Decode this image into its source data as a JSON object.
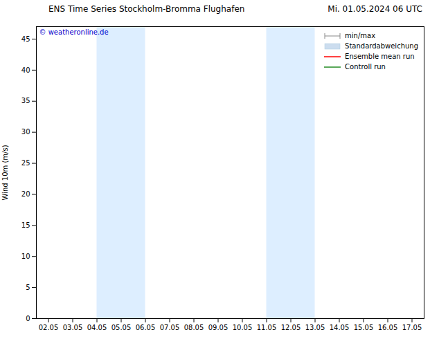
{
  "chart_data": {
    "type": "line",
    "title": "ENS Time Series Stockholm-Bromma Flughafen",
    "subtitle": "Mi. 01.05.2024 06 UTC",
    "y_label": "Wind 10m (m/s)",
    "x": [],
    "series": [
      {
        "name": "min/max",
        "color": "#888888",
        "type": "errorbar",
        "values": []
      },
      {
        "name": "Standardabweichung",
        "color": "#ccddef",
        "type": "area",
        "values": []
      },
      {
        "name": "Ensemble mean run",
        "color": "#ff0000",
        "type": "line",
        "values": []
      },
      {
        "name": "Controll run",
        "color": "#228B22",
        "type": "line",
        "values": []
      }
    ],
    "shaded_regions": [
      {
        "x1": 4.05,
        "x2": 6.05,
        "color": "#ddeeff"
      },
      {
        "x1": 11.05,
        "x2": 13.05,
        "color": "#ddeeff"
      }
    ],
    "annotations": [
      {
        "text": "© weatheronline.de",
        "color": "#0000cc"
      }
    ],
    "xlim": [
      1.55,
      17.55
    ],
    "xticks": [
      {
        "value": 2.05,
        "label": "02.05"
      },
      {
        "value": 3.05,
        "label": "03.05"
      },
      {
        "value": 4.05,
        "label": "04.05"
      },
      {
        "value": 5.05,
        "label": "05.05"
      },
      {
        "value": 6.05,
        "label": "06.05"
      },
      {
        "value": 7.05,
        "label": "07.05"
      },
      {
        "value": 8.05,
        "label": "08.05"
      },
      {
        "value": 9.05,
        "label": "09.05"
      },
      {
        "value": 10.05,
        "label": "10.05"
      },
      {
        "value": 11.05,
        "label": "11.05"
      },
      {
        "value": 12.05,
        "label": "12.05"
      },
      {
        "value": 13.05,
        "label": "13.05"
      },
      {
        "value": 14.05,
        "label": "14.05"
      },
      {
        "value": 15.05,
        "label": "15.05"
      },
      {
        "value": 16.05,
        "label": "16.05"
      },
      {
        "value": 17.05,
        "label": "17.05"
      }
    ],
    "ylim": [
      0,
      47
    ],
    "yticks": [
      0,
      5,
      10,
      15,
      20,
      25,
      30,
      35,
      40,
      45
    ],
    "grid": false,
    "legend": "upper right"
  }
}
